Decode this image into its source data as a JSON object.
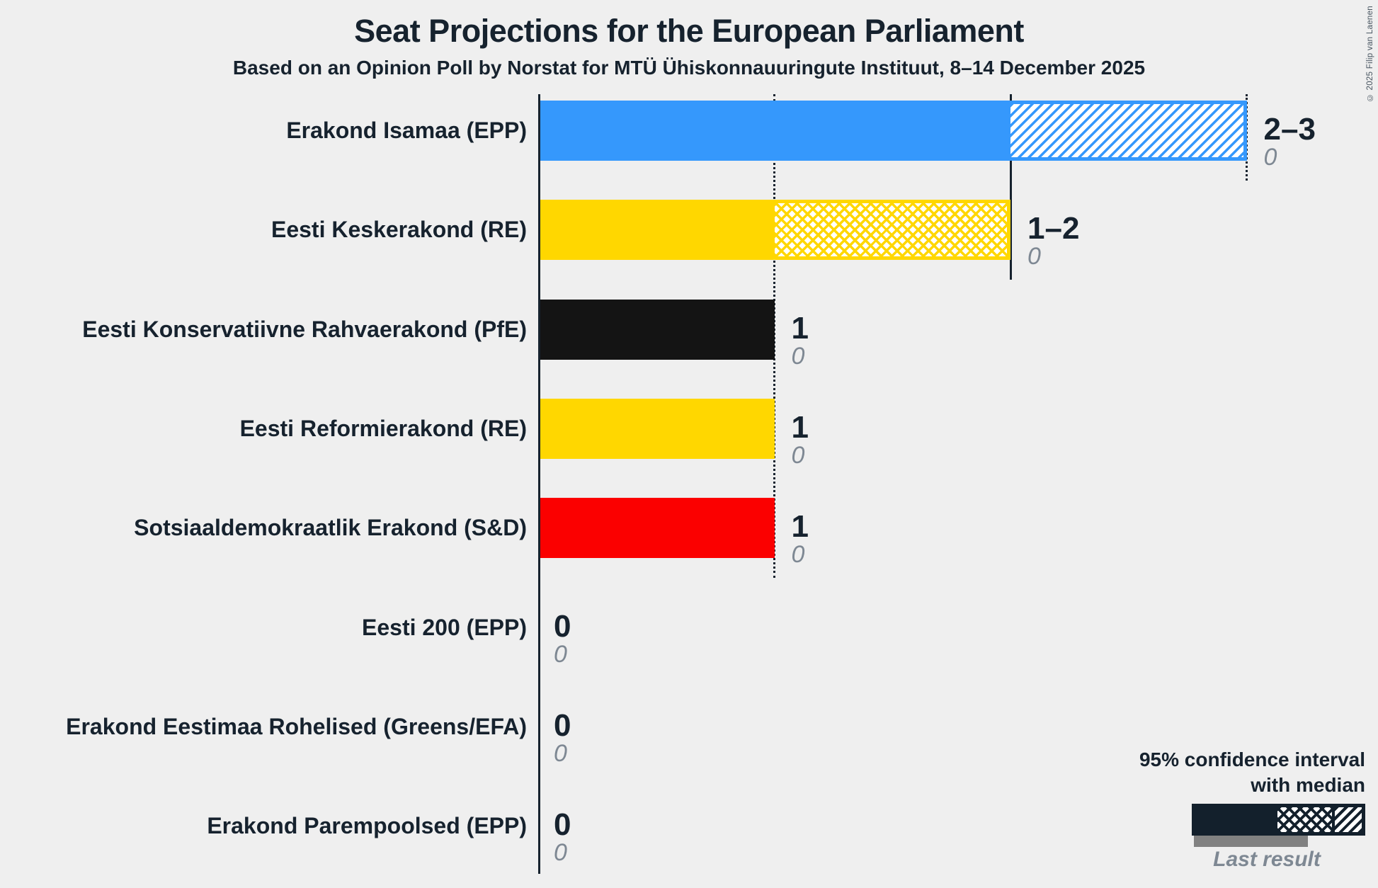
{
  "page": {
    "title": "Seat Projections for the European Parliament",
    "subtitle": "Based on an Opinion Poll by Norstat for MTÜ Ühiskonnauuringute Instituut, 8–14 December 2025",
    "copyright": "© 2025 Filip van Laenen"
  },
  "legend": {
    "ci_label_line1": "95% confidence interval",
    "ci_label_line2": "with median",
    "last_result_label": "Last result"
  },
  "colors": {
    "background": "#EFEFEF",
    "ink": "#16222E",
    "muted_gray": "#7E8893",
    "last_result_bar": "#818181"
  },
  "chart_data": {
    "type": "bar",
    "orientation": "horizontal",
    "unit": "seats",
    "x_axis": {
      "min": 0,
      "max": 3,
      "gridline_interval": 1
    },
    "gridlines": [
      {
        "seats": 1,
        "style": "dotted"
      },
      {
        "seats": 2,
        "style": "solid"
      },
      {
        "seats": 3,
        "style": "dotted"
      }
    ],
    "parties": [
      {
        "label": "Erakond Isamaa (EPP)",
        "color": "#3598FC",
        "ci_low": 2,
        "median": 2,
        "ci_high": 3,
        "value_label": "2–3",
        "last_result": 0,
        "last_result_label": "0"
      },
      {
        "label": "Eesti Keskerakond (RE)",
        "color": "#FFD700",
        "ci_low": 1,
        "median": 2,
        "ci_high": 2,
        "value_label": "1–2",
        "last_result": 0,
        "last_result_label": "0"
      },
      {
        "label": "Eesti Konservatiivne Rahvaerakond (PfE)",
        "color": "#141414",
        "ci_low": 1,
        "median": 1,
        "ci_high": 1,
        "value_label": "1",
        "last_result": 0,
        "last_result_label": "0"
      },
      {
        "label": "Eesti Reformierakond (RE)",
        "color": "#FFD700",
        "ci_low": 1,
        "median": 1,
        "ci_high": 1,
        "value_label": "1",
        "last_result": 0,
        "last_result_label": "0"
      },
      {
        "label": "Sotsiaaldemokraatlik Erakond (S&D)",
        "color": "#FB0000",
        "ci_low": 1,
        "median": 1,
        "ci_high": 1,
        "value_label": "1",
        "last_result": 0,
        "last_result_label": "0"
      },
      {
        "label": "Eesti 200 (EPP)",
        "color": null,
        "ci_low": 0,
        "median": 0,
        "ci_high": 0,
        "value_label": "0",
        "last_result": 0,
        "last_result_label": "0"
      },
      {
        "label": "Erakond Eestimaa Rohelised (Greens/EFA)",
        "color": null,
        "ci_low": 0,
        "median": 0,
        "ci_high": 0,
        "value_label": "0",
        "last_result": 0,
        "last_result_label": "0"
      },
      {
        "label": "Erakond Parempoolsed (EPP)",
        "color": null,
        "ci_low": 0,
        "median": 0,
        "ci_high": 0,
        "value_label": "0",
        "last_result": 0,
        "last_result_label": "0"
      }
    ]
  }
}
